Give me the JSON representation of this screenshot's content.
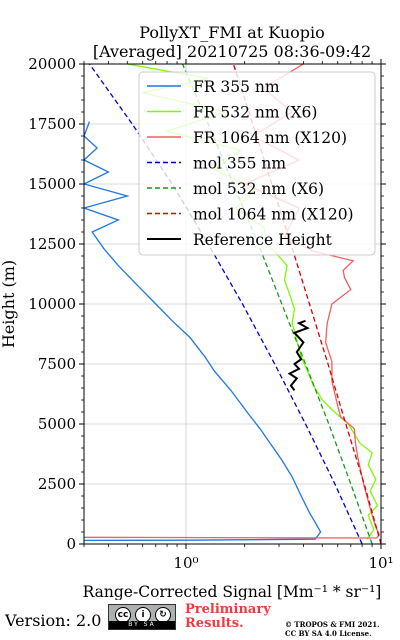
{
  "chart_data": {
    "type": "line",
    "title_line1": "PollyXT_FMI at Kuopio",
    "title_line2": "[Averaged] 20210725 08:36-09:42",
    "xlabel": "Range-Corrected Signal [Mm⁻¹ * sr⁻¹]",
    "ylabel": "Height (m)",
    "xscale": "log",
    "xlim": [
      0.3,
      10
    ],
    "ylim": [
      0,
      20000
    ],
    "x_tick_labels": [
      "10⁰",
      "10¹"
    ],
    "y_tick_labels": [
      "0",
      "2500",
      "5000",
      "7500",
      "10000",
      "12500",
      "15000",
      "17500",
      "20000"
    ],
    "grid": true,
    "legend_position": "top-right",
    "series": [
      {
        "name": "FR 355 nm",
        "color": "#1f77e0",
        "style": "solid",
        "points": [
          [
            0.3,
            150
          ],
          [
            1.0,
            160
          ],
          [
            4.6,
            200
          ],
          [
            4.9,
            500
          ],
          [
            4.6,
            900
          ],
          [
            4.3,
            1300
          ],
          [
            3.9,
            2000
          ],
          [
            3.5,
            2800
          ],
          [
            3.1,
            3500
          ],
          [
            2.7,
            4200
          ],
          [
            2.4,
            4800
          ],
          [
            2.1,
            5400
          ],
          [
            1.7,
            6400
          ],
          [
            1.4,
            7200
          ],
          [
            1.25,
            7800
          ],
          [
            1.05,
            8600
          ],
          [
            0.85,
            9300
          ],
          [
            0.7,
            10000
          ],
          [
            0.56,
            10800
          ],
          [
            0.45,
            11600
          ],
          [
            0.38,
            12300
          ],
          [
            0.33,
            13000
          ],
          [
            0.45,
            13500
          ],
          [
            0.3,
            14000
          ],
          [
            0.5,
            14500
          ],
          [
            0.3,
            15000
          ],
          [
            0.4,
            15500
          ],
          [
            0.3,
            16000
          ],
          [
            0.35,
            16500
          ],
          [
            0.3,
            17000
          ],
          [
            0.32,
            17600
          ]
        ]
      },
      {
        "name": "FR 532 nm (X6)",
        "color": "#7cfc00",
        "style": "solid",
        "points": [
          [
            8.5,
            200
          ],
          [
            9.2,
            600
          ],
          [
            8.6,
            1200
          ],
          [
            9.6,
            1600
          ],
          [
            8.8,
            2200
          ],
          [
            9.4,
            2700
          ],
          [
            8.6,
            3300
          ],
          [
            9.0,
            3800
          ],
          [
            7.8,
            4200
          ],
          [
            6.8,
            5000
          ],
          [
            5.6,
            5600
          ],
          [
            5.0,
            6000
          ],
          [
            4.5,
            6600
          ],
          [
            4.2,
            7200
          ],
          [
            3.9,
            7800
          ],
          [
            3.7,
            8500
          ],
          [
            3.5,
            9200
          ],
          [
            3.6,
            9800
          ],
          [
            3.4,
            10400
          ],
          [
            3.2,
            11000
          ],
          [
            3.3,
            11600
          ],
          [
            2.9,
            12100
          ],
          [
            2.6,
            12500
          ],
          [
            2.5,
            13200
          ],
          [
            1.8,
            14000
          ],
          [
            2.3,
            14800
          ],
          [
            1.4,
            15600
          ],
          [
            1.9,
            16400
          ],
          [
            0.8,
            17200
          ],
          [
            1.6,
            18000
          ],
          [
            0.6,
            18800
          ],
          [
            1.3,
            19400
          ],
          [
            0.5,
            20000
          ]
        ]
      },
      {
        "name": "FR 1064 nm (X120)",
        "color": "#f06060",
        "style": "solid",
        "points": [
          [
            0.3,
            280
          ],
          [
            3.0,
            260
          ],
          [
            9.5,
            250
          ],
          [
            9.8,
            400
          ],
          [
            9.4,
            700
          ],
          [
            9.0,
            1200
          ],
          [
            8.6,
            1800
          ],
          [
            8.2,
            2400
          ],
          [
            7.9,
            3000
          ],
          [
            7.6,
            3600
          ],
          [
            7.4,
            4200
          ],
          [
            7.3,
            4800
          ],
          [
            6.2,
            5300
          ],
          [
            5.9,
            6000
          ],
          [
            5.6,
            6800
          ],
          [
            5.6,
            7600
          ],
          [
            5.2,
            8400
          ],
          [
            5.3,
            9200
          ],
          [
            5.6,
            10000
          ],
          [
            7.0,
            10600
          ],
          [
            6.5,
            11100
          ],
          [
            6.4,
            11400
          ],
          [
            7.2,
            11800
          ],
          [
            4.5,
            12200
          ],
          [
            3.2,
            12800
          ],
          [
            3.8,
            14000
          ],
          [
            2.0,
            15000
          ],
          [
            3.8,
            16000
          ],
          [
            2.2,
            17000
          ],
          [
            3.5,
            18000
          ],
          [
            2.5,
            19000
          ],
          [
            4.0,
            20000
          ]
        ]
      },
      {
        "name": "mol 355 nm",
        "color": "#0000cc",
        "style": "dashed",
        "points": [
          [
            8.0,
            0
          ],
          [
            5.8,
            2500
          ],
          [
            4.1,
            5000
          ],
          [
            2.85,
            7500
          ],
          [
            1.95,
            10000
          ],
          [
            1.3,
            12500
          ],
          [
            0.85,
            15000
          ],
          [
            0.53,
            17500
          ],
          [
            0.32,
            20000
          ]
        ]
      },
      {
        "name": "mol 532 nm (X6)",
        "color": "#1a9a1a",
        "style": "dashed",
        "points": [
          [
            9.0,
            0
          ],
          [
            7.0,
            2500
          ],
          [
            5.4,
            5000
          ],
          [
            4.1,
            7500
          ],
          [
            3.1,
            10000
          ],
          [
            2.35,
            12500
          ],
          [
            1.75,
            15000
          ],
          [
            1.3,
            17500
          ],
          [
            0.96,
            20000
          ]
        ]
      },
      {
        "name": "mol 1064 nm (X120)",
        "color": "#dd0000",
        "style": "dashed",
        "points": [
          [
            10.0,
            0
          ],
          [
            8.2,
            2500
          ],
          [
            6.6,
            5000
          ],
          [
            5.35,
            7500
          ],
          [
            4.3,
            10000
          ],
          [
            3.45,
            12500
          ],
          [
            2.75,
            15000
          ],
          [
            2.2,
            17500
          ],
          [
            1.75,
            20000
          ]
        ]
      },
      {
        "name": "Reference Height",
        "color": "#000000",
        "style": "solid",
        "points": [
          [
            3.6,
            6400
          ],
          [
            3.45,
            6600
          ],
          [
            3.7,
            6900
          ],
          [
            3.4,
            7100
          ],
          [
            3.8,
            7300
          ],
          [
            3.6,
            7500
          ],
          [
            3.9,
            7700
          ],
          [
            3.7,
            8000
          ],
          [
            4.0,
            8400
          ],
          [
            3.6,
            8800
          ],
          [
            4.2,
            9000
          ],
          [
            3.8,
            9200
          ],
          [
            4.1,
            9300
          ]
        ]
      }
    ]
  },
  "footer": {
    "version": "Version: 2.0",
    "preliminary": [
      "Preliminary",
      "Results."
    ],
    "copyright": [
      "© TROPOS & FMI 2021.",
      "CC BY SA 4.0 License."
    ]
  }
}
